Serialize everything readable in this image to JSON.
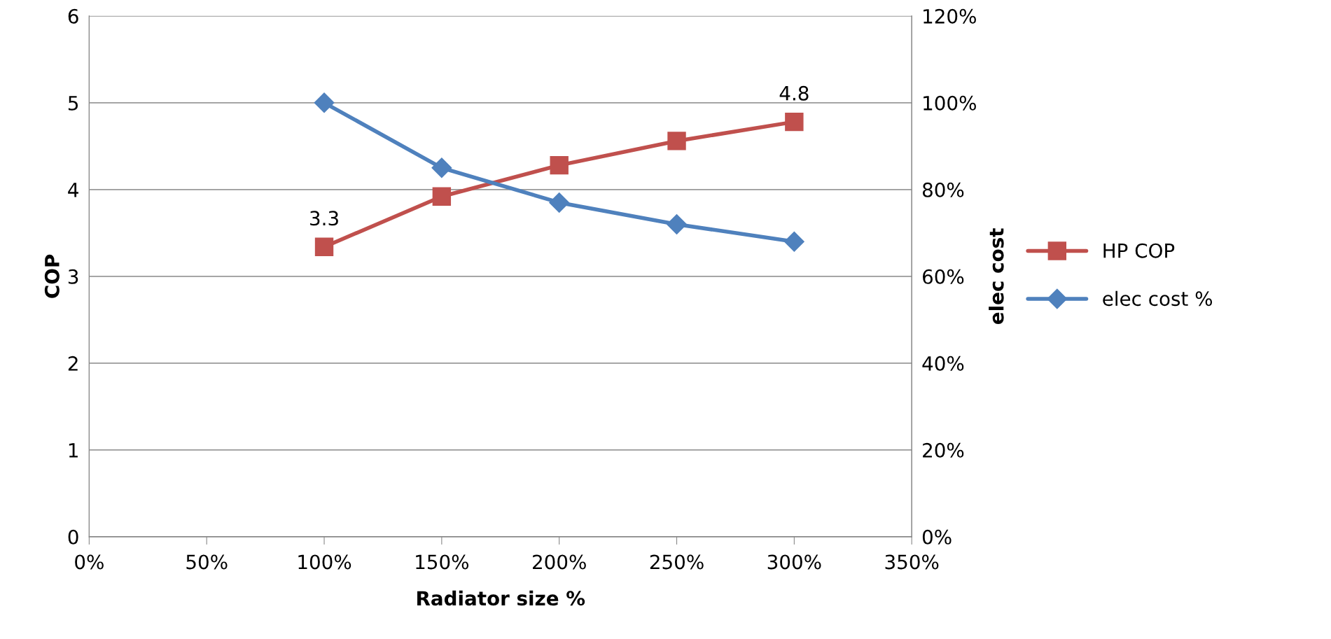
{
  "chart_data": {
    "type": "line",
    "xlabel": "Radiator size %",
    "ylabel": "COP",
    "y2label": "elec cost",
    "x": [
      100,
      150,
      200,
      250,
      300
    ],
    "xlim": [
      0,
      350
    ],
    "xticks": [
      {
        "value": 0,
        "label": "0%"
      },
      {
        "value": 50,
        "label": "50%"
      },
      {
        "value": 100,
        "label": "100%"
      },
      {
        "value": 150,
        "label": "150%"
      },
      {
        "value": 200,
        "label": "200%"
      },
      {
        "value": 250,
        "label": "250%"
      },
      {
        "value": 300,
        "label": "300%"
      },
      {
        "value": 350,
        "label": "350%"
      }
    ],
    "ylim": [
      0,
      6
    ],
    "yticks": [
      0,
      1,
      2,
      3,
      4,
      5,
      6
    ],
    "y2lim": [
      0,
      120
    ],
    "y2ticks": [
      {
        "value": 0,
        "label": "0%"
      },
      {
        "value": 20,
        "label": "20%"
      },
      {
        "value": 40,
        "label": "40%"
      },
      {
        "value": 60,
        "label": "60%"
      },
      {
        "value": 80,
        "label": "80%"
      },
      {
        "value": 100,
        "label": "100%"
      },
      {
        "value": 120,
        "label": "120%"
      }
    ],
    "grid": "y",
    "legend": "right",
    "line_style": "solid",
    "series": [
      {
        "name": "HP COP",
        "color": "#c0504d",
        "marker": "square",
        "values": [
          3.34,
          3.92,
          4.28,
          4.56,
          4.78
        ],
        "value_labels": [
          "3.3",
          null,
          null,
          null,
          "4.8"
        ]
      },
      {
        "name": "elec cost %",
        "color": "#4f81bd",
        "marker": "diamond",
        "axis": "y2",
        "values": [
          100,
          85,
          77,
          72,
          68
        ]
      }
    ]
  }
}
